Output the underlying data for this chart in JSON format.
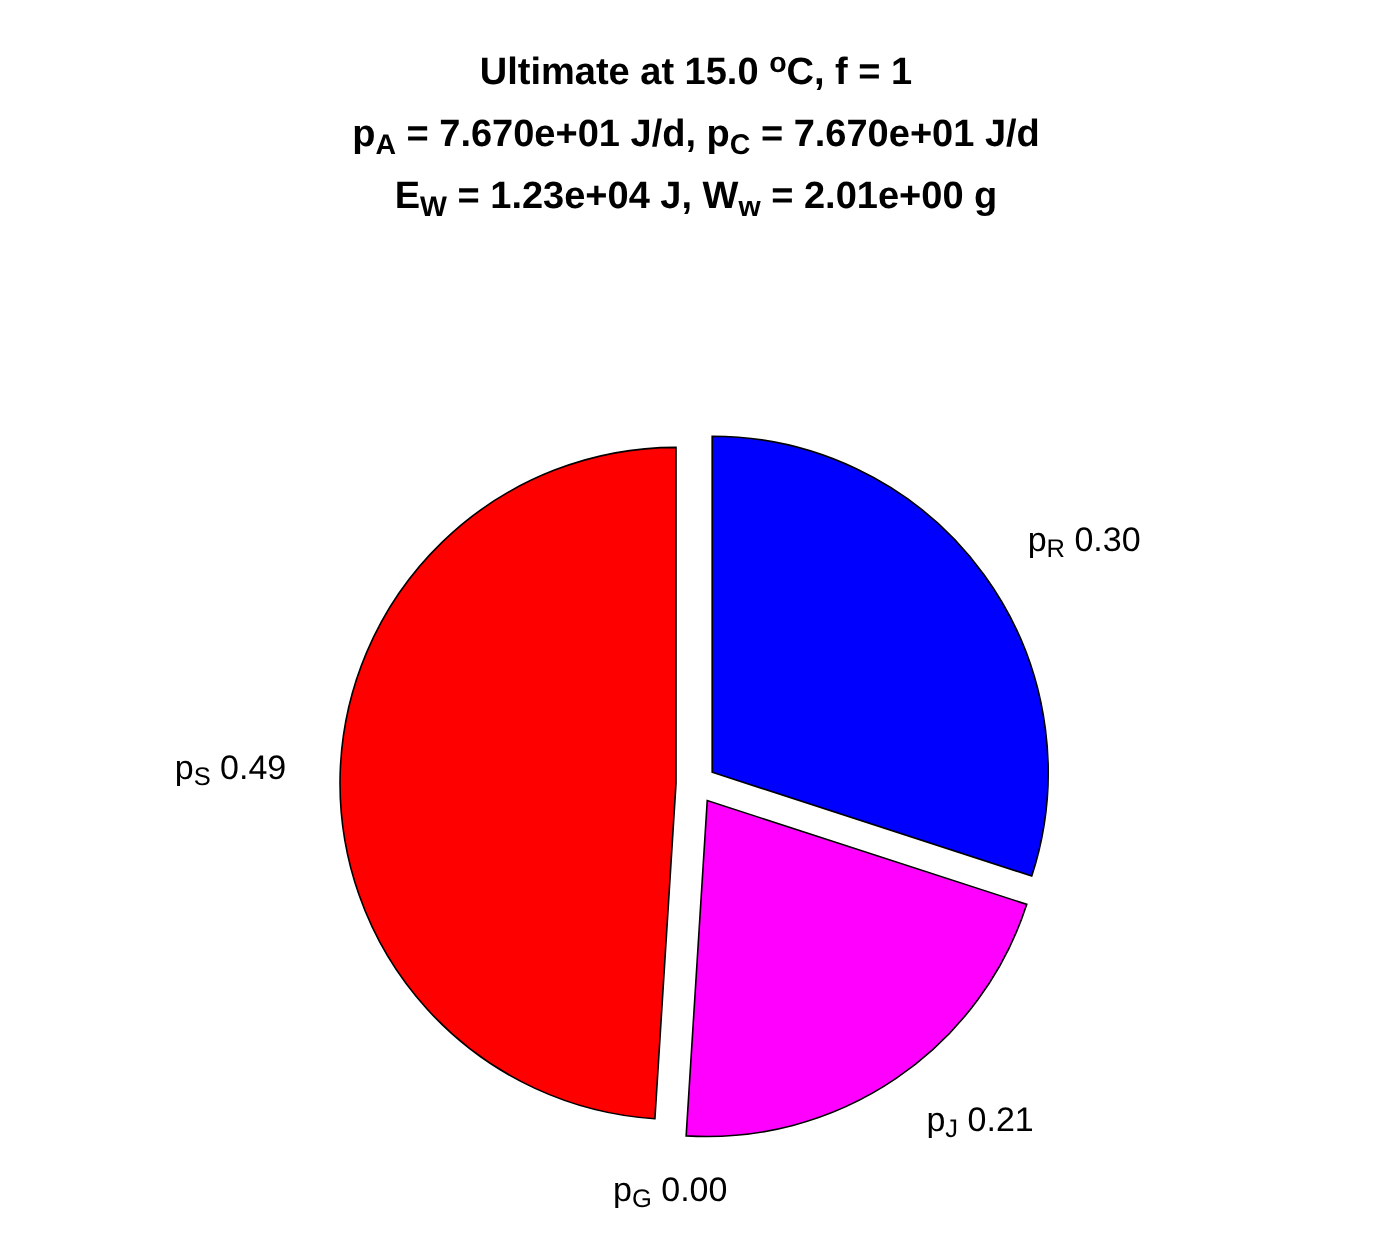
{
  "chart_data": {
    "type": "pie",
    "title": "Ultimate at 15.0 $^{o}$C, f = 1\np$_{A}$ = 7.670e+01 J/d, p$_{C}$ = 7.670e+01 J/d\nE$_{W}$ = 1.23e+04 J, W$_{w}$ = 2.01e+00 g",
    "categories": [
      "p$_{R}$",
      "p$_{J}$",
      "p$_{G}$",
      "p$_{S}$"
    ],
    "values": [
      0.3,
      0.21,
      0.0,
      0.49
    ],
    "value_labels": [
      "0.30",
      "0.21",
      "0.00",
      "0.49"
    ],
    "colors": [
      "#0000ff",
      "#ff00ff",
      null,
      "#ff0000"
    ]
  }
}
